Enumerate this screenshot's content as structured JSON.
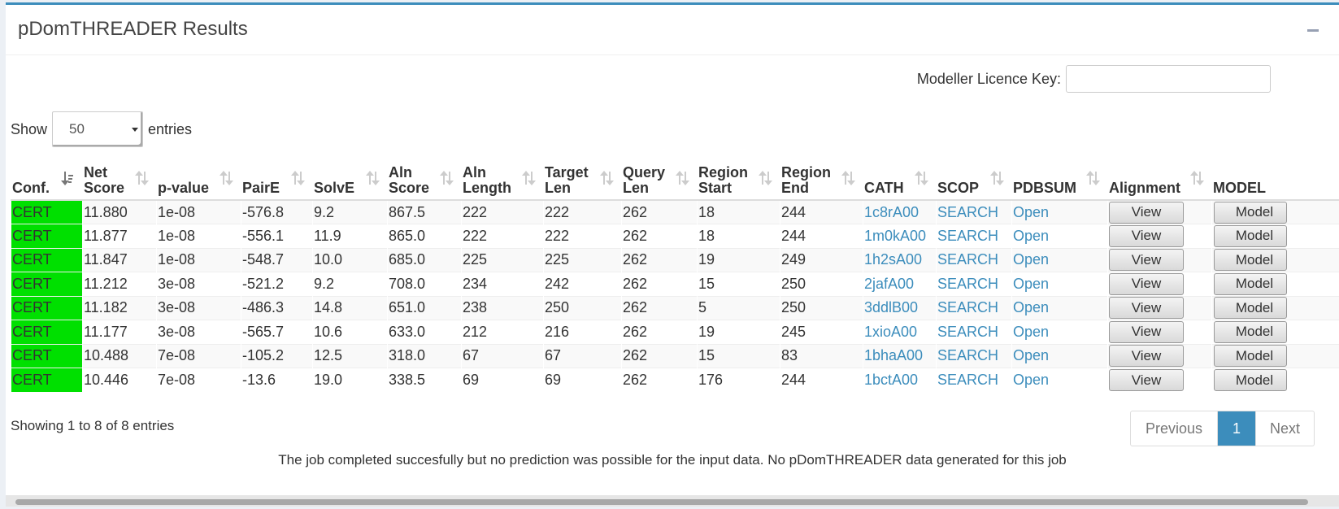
{
  "panel": {
    "title": "pDomTHREADER Results",
    "collapse_icon": "minus-icon"
  },
  "licence": {
    "label": "Modeller Licence Key:",
    "value": "",
    "placeholder": ""
  },
  "length_menu": {
    "prefix": "Show",
    "selected": "50",
    "suffix": "entries"
  },
  "table": {
    "columns": [
      {
        "key": "conf",
        "l1": "Conf.",
        "l2": "",
        "sortable": true,
        "sorted": true
      },
      {
        "key": "net_score",
        "l1": "Net",
        "l2": "Score",
        "sortable": true
      },
      {
        "key": "p_value",
        "l1": "p-value",
        "l2": "",
        "sortable": true
      },
      {
        "key": "pair_e",
        "l1": "PairE",
        "l2": "",
        "sortable": true
      },
      {
        "key": "solv_e",
        "l1": "SolvE",
        "l2": "",
        "sortable": true
      },
      {
        "key": "aln_score",
        "l1": "Aln",
        "l2": "Score",
        "sortable": true
      },
      {
        "key": "aln_length",
        "l1": "Aln",
        "l2": "Length",
        "sortable": true
      },
      {
        "key": "target_len",
        "l1": "Target",
        "l2": "Len",
        "sortable": true
      },
      {
        "key": "query_len",
        "l1": "Query",
        "l2": "Len",
        "sortable": true
      },
      {
        "key": "region_start",
        "l1": "Region",
        "l2": "Start",
        "sortable": true
      },
      {
        "key": "region_end",
        "l1": "Region",
        "l2": "End",
        "sortable": true
      },
      {
        "key": "cath",
        "l1": "CATH",
        "l2": "",
        "sortable": true
      },
      {
        "key": "scop",
        "l1": "SCOP",
        "l2": "",
        "sortable": true
      },
      {
        "key": "pdbsum",
        "l1": "PDBSUM",
        "l2": "",
        "sortable": true
      },
      {
        "key": "alignment",
        "l1": "Alignment",
        "l2": "",
        "sortable": true
      },
      {
        "key": "model",
        "l1": "MODEL",
        "l2": "",
        "sortable": false
      }
    ],
    "rows": [
      {
        "conf": "CERT",
        "net_score": "11.880",
        "p_value": "1e-08",
        "pair_e": "-576.8",
        "solv_e": "9.2",
        "aln_score": "867.5",
        "aln_length": "222",
        "target_len": "222",
        "query_len": "262",
        "region_start": "18",
        "region_end": "244",
        "cath": "1c8rA00",
        "scop": "SEARCH",
        "pdbsum": "Open",
        "alignment": "View",
        "model": "Model"
      },
      {
        "conf": "CERT",
        "net_score": "11.877",
        "p_value": "1e-08",
        "pair_e": "-556.1",
        "solv_e": "11.9",
        "aln_score": "865.0",
        "aln_length": "222",
        "target_len": "222",
        "query_len": "262",
        "region_start": "18",
        "region_end": "244",
        "cath": "1m0kA00",
        "scop": "SEARCH",
        "pdbsum": "Open",
        "alignment": "View",
        "model": "Model"
      },
      {
        "conf": "CERT",
        "net_score": "11.847",
        "p_value": "1e-08",
        "pair_e": "-548.7",
        "solv_e": "10.0",
        "aln_score": "685.0",
        "aln_length": "225",
        "target_len": "225",
        "query_len": "262",
        "region_start": "19",
        "region_end": "249",
        "cath": "1h2sA00",
        "scop": "SEARCH",
        "pdbsum": "Open",
        "alignment": "View",
        "model": "Model"
      },
      {
        "conf": "CERT",
        "net_score": "11.212",
        "p_value": "3e-08",
        "pair_e": "-521.2",
        "solv_e": "9.2",
        "aln_score": "708.0",
        "aln_length": "234",
        "target_len": "242",
        "query_len": "262",
        "region_start": "15",
        "region_end": "250",
        "cath": "2jafA00",
        "scop": "SEARCH",
        "pdbsum": "Open",
        "alignment": "View",
        "model": "Model"
      },
      {
        "conf": "CERT",
        "net_score": "11.182",
        "p_value": "3e-08",
        "pair_e": "-486.3",
        "solv_e": "14.8",
        "aln_score": "651.0",
        "aln_length": "238",
        "target_len": "250",
        "query_len": "262",
        "region_start": "5",
        "region_end": "250",
        "cath": "3ddlB00",
        "scop": "SEARCH",
        "pdbsum": "Open",
        "alignment": "View",
        "model": "Model"
      },
      {
        "conf": "CERT",
        "net_score": "11.177",
        "p_value": "3e-08",
        "pair_e": "-565.7",
        "solv_e": "10.6",
        "aln_score": "633.0",
        "aln_length": "212",
        "target_len": "216",
        "query_len": "262",
        "region_start": "19",
        "region_end": "245",
        "cath": "1xioA00",
        "scop": "SEARCH",
        "pdbsum": "Open",
        "alignment": "View",
        "model": "Model"
      },
      {
        "conf": "CERT",
        "net_score": "10.488",
        "p_value": "7e-08",
        "pair_e": "-105.2",
        "solv_e": "12.5",
        "aln_score": "318.0",
        "aln_length": "67",
        "target_len": "67",
        "query_len": "262",
        "region_start": "15",
        "region_end": "83",
        "cath": "1bhaA00",
        "scop": "SEARCH",
        "pdbsum": "Open",
        "alignment": "View",
        "model": "Model"
      },
      {
        "conf": "CERT",
        "net_score": "10.446",
        "p_value": "7e-08",
        "pair_e": "-13.6",
        "solv_e": "19.0",
        "aln_score": "338.5",
        "aln_length": "69",
        "target_len": "69",
        "query_len": "262",
        "region_start": "176",
        "region_end": "244",
        "cath": "1bctA00",
        "scop": "SEARCH",
        "pdbsum": "Open",
        "alignment": "View",
        "model": "Model"
      }
    ]
  },
  "info": "Showing 1 to 8 of 8 entries",
  "pagination": {
    "previous": "Previous",
    "current": "1",
    "next": "Next"
  },
  "message": "The job completed succesfully but no prediction was possible for the input data. No pDomTHREADER data generated for this job",
  "colors": {
    "accent": "#3c8dbc",
    "cert": "#00e000"
  }
}
